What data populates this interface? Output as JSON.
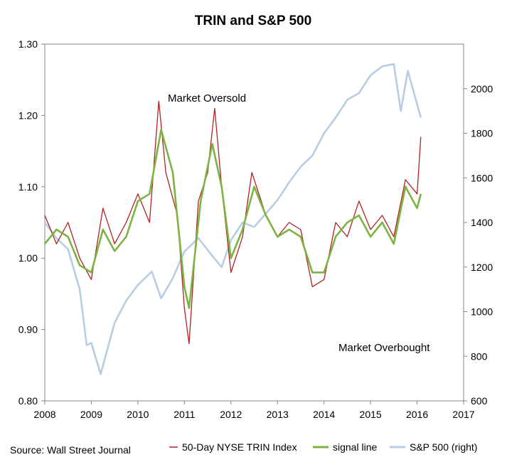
{
  "chart_data": {
    "type": "line",
    "title": "TRIN and S&P 500",
    "source": "Source: Wall Street Journal",
    "annotations": [
      "Market Oversold",
      "Market Overbought"
    ],
    "xlim": [
      2008,
      2017
    ],
    "x_ticks": [
      "2008",
      "2009",
      "2010",
      "2011",
      "2012",
      "2013",
      "2014",
      "2015",
      "2016",
      "2017"
    ],
    "ylim_left": [
      0.8,
      1.3
    ],
    "y_ticks_left": [
      "0.80",
      "0.90",
      "1.00",
      "1.10",
      "1.20",
      "1.30"
    ],
    "ylim_right": [
      600,
      2200
    ],
    "y_ticks_right": [
      "600",
      "800",
      "1000",
      "1200",
      "1400",
      "1600",
      "1800",
      "2000"
    ],
    "grid": false,
    "legend_position": "bottom",
    "series": [
      {
        "name": "50-Day NYSE TRIN Index",
        "axis": "left",
        "color": "#b22222",
        "x": [
          2008.0,
          2008.25,
          2008.5,
          2008.75,
          2009.0,
          2009.25,
          2009.5,
          2009.75,
          2010.0,
          2010.25,
          2010.45,
          2010.6,
          2010.85,
          2011.0,
          2011.1,
          2011.3,
          2011.5,
          2011.65,
          2011.8,
          2012.0,
          2012.25,
          2012.45,
          2012.75,
          2013.0,
          2013.25,
          2013.5,
          2013.75,
          2014.0,
          2014.25,
          2014.5,
          2014.75,
          2015.0,
          2015.25,
          2015.5,
          2015.75,
          2016.0,
          2016.08
        ],
        "y": [
          1.06,
          1.02,
          1.05,
          1.0,
          0.97,
          1.07,
          1.02,
          1.05,
          1.09,
          1.05,
          1.22,
          1.12,
          1.06,
          0.93,
          0.88,
          1.08,
          1.12,
          1.21,
          1.1,
          0.98,
          1.03,
          1.12,
          1.06,
          1.03,
          1.05,
          1.04,
          0.96,
          0.97,
          1.05,
          1.03,
          1.08,
          1.04,
          1.06,
          1.03,
          1.11,
          1.09,
          1.17
        ]
      },
      {
        "name": "signal line",
        "axis": "left",
        "color": "#7cb342",
        "x": [
          2008.0,
          2008.25,
          2008.5,
          2008.75,
          2009.0,
          2009.25,
          2009.5,
          2009.75,
          2010.0,
          2010.25,
          2010.5,
          2010.75,
          2011.0,
          2011.1,
          2011.35,
          2011.6,
          2011.8,
          2012.0,
          2012.25,
          2012.5,
          2012.75,
          2013.0,
          2013.25,
          2013.5,
          2013.75,
          2014.0,
          2014.25,
          2014.5,
          2014.75,
          2015.0,
          2015.25,
          2015.5,
          2015.75,
          2016.0,
          2016.08
        ],
        "y": [
          1.02,
          1.04,
          1.03,
          0.99,
          0.98,
          1.04,
          1.01,
          1.03,
          1.08,
          1.09,
          1.18,
          1.12,
          0.96,
          0.93,
          1.08,
          1.16,
          1.1,
          1.0,
          1.04,
          1.1,
          1.06,
          1.03,
          1.04,
          1.03,
          0.98,
          0.98,
          1.03,
          1.05,
          1.06,
          1.03,
          1.05,
          1.02,
          1.1,
          1.07,
          1.09
        ]
      },
      {
        "name": "S&P 500 (right)",
        "axis": "right",
        "color": "#b8cce4",
        "x": [
          2008.0,
          2008.25,
          2008.5,
          2008.75,
          2008.9,
          2009.0,
          2009.2,
          2009.5,
          2009.75,
          2010.0,
          2010.3,
          2010.5,
          2010.75,
          2011.0,
          2011.3,
          2011.6,
          2011.8,
          2012.0,
          2012.25,
          2012.5,
          2012.75,
          2013.0,
          2013.25,
          2013.5,
          2013.75,
          2014.0,
          2014.25,
          2014.5,
          2014.75,
          2015.0,
          2015.25,
          2015.5,
          2015.65,
          2015.8,
          2016.0,
          2016.08
        ],
        "y": [
          1400,
          1330,
          1280,
          1100,
          850,
          860,
          720,
          950,
          1050,
          1120,
          1180,
          1060,
          1150,
          1270,
          1330,
          1250,
          1200,
          1320,
          1400,
          1380,
          1440,
          1500,
          1580,
          1650,
          1700,
          1800,
          1870,
          1950,
          1980,
          2060,
          2100,
          2110,
          1900,
          2080,
          1930,
          1870
        ]
      }
    ]
  }
}
